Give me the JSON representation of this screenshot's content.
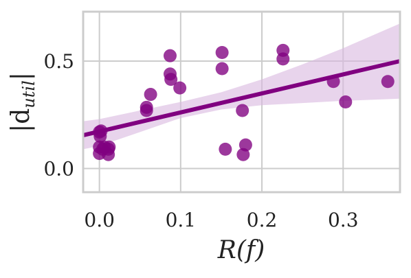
{
  "chart_data": {
    "type": "scatter",
    "xlabel": "R(f)",
    "ylabel": "|d_util|",
    "xlim": [
      -0.02,
      0.37
    ],
    "ylim": [
      -0.11,
      0.73
    ],
    "xticks": [
      0.0,
      0.1,
      0.2,
      0.3
    ],
    "yticks": [
      0.0,
      0.5
    ],
    "xtick_labels": [
      "0.0",
      "0.1",
      "0.2",
      "0.3"
    ],
    "ytick_labels": [
      "0.0",
      "0.5"
    ],
    "grid": true,
    "colors": {
      "points": "#800080",
      "line": "#800080",
      "band": "#d9b8df",
      "grid": "#cccccc",
      "frame": "#cccccc"
    },
    "points": [
      {
        "x": 0.0,
        "y": 0.17
      },
      {
        "x": 0.001,
        "y": 0.15
      },
      {
        "x": 0.002,
        "y": 0.175
      },
      {
        "x": 0.0,
        "y": 0.1
      },
      {
        "x": 0.0,
        "y": 0.07
      },
      {
        "x": 0.004,
        "y": 0.09
      },
      {
        "x": 0.006,
        "y": 0.1
      },
      {
        "x": 0.011,
        "y": 0.09
      },
      {
        "x": 0.012,
        "y": 0.1
      },
      {
        "x": 0.011,
        "y": 0.065
      },
      {
        "x": 0.058,
        "y": 0.285
      },
      {
        "x": 0.058,
        "y": 0.27
      },
      {
        "x": 0.063,
        "y": 0.345
      },
      {
        "x": 0.087,
        "y": 0.525
      },
      {
        "x": 0.087,
        "y": 0.44
      },
      {
        "x": 0.088,
        "y": 0.415
      },
      {
        "x": 0.099,
        "y": 0.375
      },
      {
        "x": 0.151,
        "y": 0.54
      },
      {
        "x": 0.151,
        "y": 0.465
      },
      {
        "x": 0.155,
        "y": 0.09
      },
      {
        "x": 0.176,
        "y": 0.27
      },
      {
        "x": 0.177,
        "y": 0.065
      },
      {
        "x": 0.18,
        "y": 0.11
      },
      {
        "x": 0.226,
        "y": 0.55
      },
      {
        "x": 0.226,
        "y": 0.51
      },
      {
        "x": 0.288,
        "y": 0.405
      },
      {
        "x": 0.303,
        "y": 0.31
      },
      {
        "x": 0.355,
        "y": 0.405
      }
    ],
    "regression": {
      "x": [
        -0.02,
        0.37
      ],
      "y": [
        0.155,
        0.5
      ]
    },
    "confidence_band": {
      "x": [
        -0.02,
        0.0,
        0.05,
        0.1,
        0.15,
        0.2,
        0.25,
        0.3,
        0.37
      ],
      "upper": [
        0.22,
        0.23,
        0.27,
        0.31,
        0.355,
        0.415,
        0.485,
        0.56,
        0.675
      ],
      "lower": [
        0.09,
        0.105,
        0.17,
        0.235,
        0.275,
        0.295,
        0.305,
        0.315,
        0.325
      ]
    }
  }
}
